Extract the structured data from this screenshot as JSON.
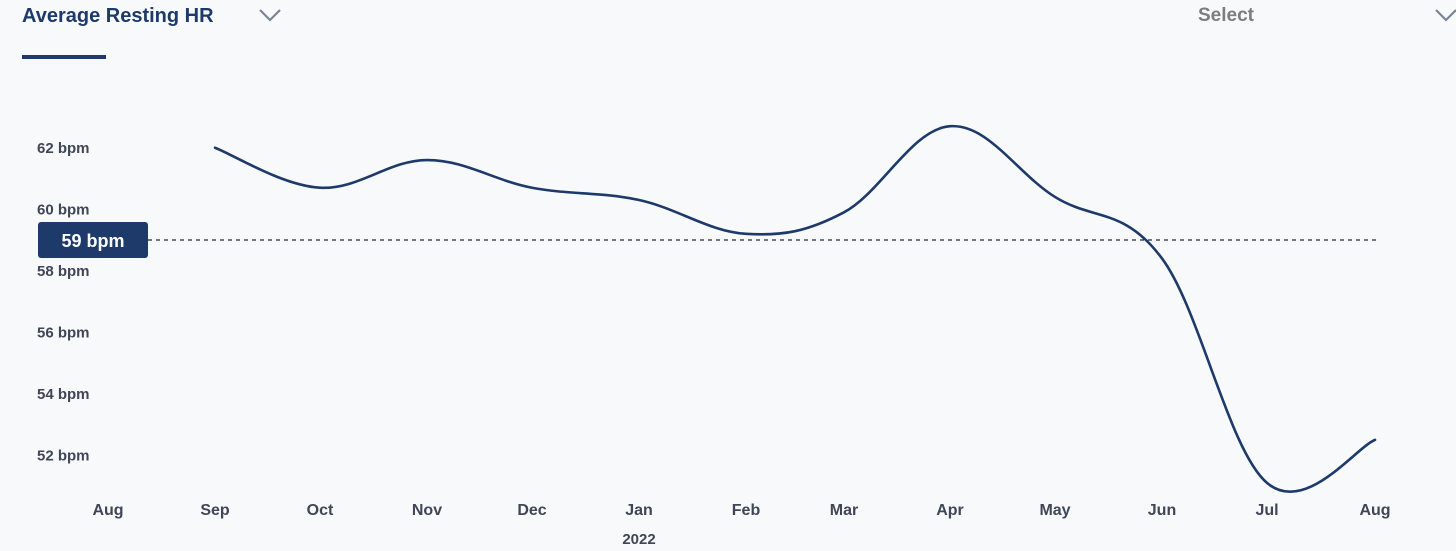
{
  "header": {
    "metric_label": "Average Resting HR",
    "select_label": "Select"
  },
  "colors": {
    "line": "#1d3a6a",
    "badge": "#1d3a6a",
    "text": "#3f4656",
    "background": "#f8f9fb"
  },
  "icons": {
    "metric_dropdown": "chevron-down-icon",
    "select_dropdown": "chevron-down-icon"
  },
  "chart_data": {
    "type": "line",
    "x": [
      "Aug",
      "Sep",
      "Oct",
      "Nov",
      "Dec",
      "Jan",
      "Feb",
      "Mar",
      "Apr",
      "May",
      "Jun",
      "Jul",
      "Aug"
    ],
    "x_tick_labels": [
      "Aug",
      "Sep",
      "Oct",
      "Nov",
      "Dec",
      "Jan",
      "Feb",
      "Mar",
      "Apr",
      "May",
      "Jun",
      "Jul",
      "Aug"
    ],
    "year_label": "2022",
    "series": [
      {
        "values": [
          null,
          62.0,
          60.7,
          61.6,
          60.7,
          60.3,
          59.2,
          59.9,
          62.7,
          60.4,
          58.4,
          51.1,
          52.5
        ]
      }
    ],
    "y_ticks": [
      52,
      54,
      56,
      58,
      60,
      62
    ],
    "y_tick_labels": [
      "52 bpm",
      "54 bpm",
      "56 bpm",
      "58 bpm",
      "60 bpm",
      "62 bpm"
    ],
    "ylim": [
      51,
      63
    ],
    "reference_line": {
      "value": 59,
      "label": "59 bpm",
      "style": "dashed"
    },
    "grid": false,
    "legend": "none"
  }
}
